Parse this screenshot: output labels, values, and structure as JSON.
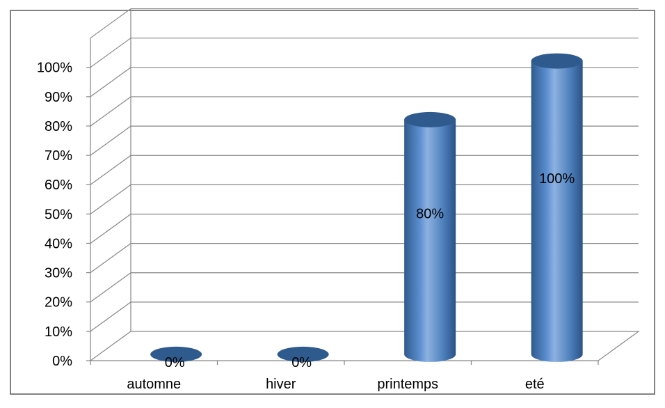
{
  "chart_data": {
    "type": "bar",
    "style": "3d-cylinder",
    "categories": [
      "automne",
      "hiver",
      "printemps",
      "eté"
    ],
    "values": [
      0,
      0,
      80,
      100
    ],
    "value_labels": [
      "0%",
      "0%",
      "80%",
      "100%"
    ],
    "y_tick_labels": [
      "0%",
      "10%",
      "20%",
      "30%",
      "40%",
      "50%",
      "60%",
      "70%",
      "80%",
      "90%",
      "100%"
    ],
    "ylim": [
      0,
      110
    ],
    "grid": true,
    "legend": "none",
    "colors": {
      "bar": "#4F81BD",
      "bar_dark": "#2F5A8E",
      "bar_light": "#8DB1E0",
      "grid": "#868686",
      "frame": "#595959"
    }
  }
}
